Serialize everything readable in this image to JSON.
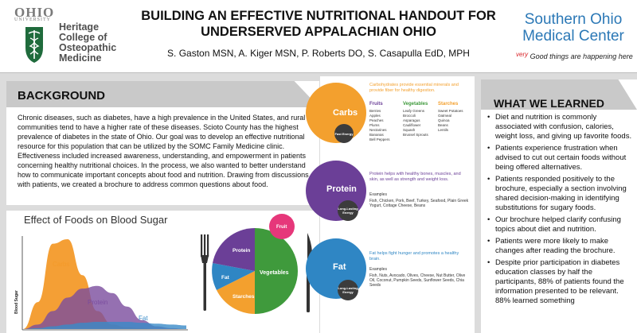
{
  "header": {
    "ohio_wordmark": "OHIO",
    "ohio_subtext": "UNIVERSITY",
    "college_lines": [
      "Heritage",
      "College of",
      "Osteopathic",
      "Medicine"
    ],
    "title_line1": "BUILDING AN EFFECTIVE NUTRITIONAL HANDOUT FOR",
    "title_line2": "UNDERSERVED APPALACHIAN OHIO",
    "authors": "S. Gaston MSN, A. Kiger MSN, P. Roberts DO, S. Casapulla EdD, MPH",
    "somc_line1": "Southern Ohio",
    "somc_line2": "Medical Center",
    "tagline_very": "very",
    "tagline": "Good things are happening here"
  },
  "background": {
    "title": "BACKGROUND",
    "text": "Chronic diseases, such as diabetes, have a high prevalence in the United States, and rural communities tend to have a higher rate of these diseases. Scioto County has the highest prevalence of diabetes in the state of Ohio. Our goal was to develop an effective nutritional resource for this population that can be utilized by the SOMC Family Medicine clinic. Effectiveness included increased awareness, understanding, and empowerment in patients concerning healthy nutritional choices. In the process, we also wanted to better understand how to communicate important concepts about food and nutrition. Drawing from discussions with patients, we created a brochure to address common questions about food."
  },
  "effect": {
    "title": "Effect of Foods on Blood Sugar",
    "y_axis_label": "Blood Sugar",
    "chart_data": {
      "type": "area",
      "title": "Effect of Foods on Blood Sugar",
      "ylabel": "Blood Sugar",
      "xlabel": "",
      "series": [
        {
          "name": "Carbs",
          "values": [
            0,
            30,
            95,
            100,
            60,
            20,
            5,
            2,
            1,
            0,
            0,
            0
          ],
          "color": "#f39a2a"
        },
        {
          "name": "Protein",
          "values": [
            0,
            5,
            20,
            35,
            45,
            48,
            40,
            25,
            10,
            3,
            1,
            0
          ],
          "color": "#7a4c9e"
        },
        {
          "name": "Fat",
          "values": [
            0,
            1,
            3,
            5,
            7,
            8,
            8,
            8,
            7,
            6,
            5,
            4
          ],
          "color": "#3a8bc8"
        }
      ]
    },
    "plate": {
      "protein": "Protein",
      "fat": "Fat",
      "starches": "Starches",
      "vegetables": "Vegetables",
      "fruit": "Fruit",
      "colors": {
        "protein": "#6b3f97",
        "fat": "#2f86c4",
        "starches": "#f3a02e",
        "vegetables": "#3f9a3c",
        "fruit": "#e6377a"
      }
    }
  },
  "brochure": {
    "carbs": {
      "label": "Carbs",
      "energy": "Fast Energy",
      "color": "#f3a02e",
      "desc": "Carbohydrates provide essential minerals and provide fiber for healthy digestion.",
      "columns": [
        {
          "head": "Fruits",
          "color": "#6b3f97",
          "items": [
            "Berries",
            "Apples",
            "Peaches",
            "Plums",
            "Nectarines",
            "Bananas",
            "Bell Peppers"
          ]
        },
        {
          "head": "Vegetables",
          "color": "#3f9a3c",
          "items": [
            "Leafy Greens",
            "Broccoli",
            "Asparagus",
            "Cauliflower",
            "Squash",
            "Brussel Sprouts"
          ]
        },
        {
          "head": "Starches",
          "color": "#f3a02e",
          "items": [
            "Sweet Potatoes",
            "Oatmeal",
            "Quinoa",
            "Beans",
            "Lentils"
          ]
        }
      ]
    },
    "protein": {
      "label": "Protein",
      "energy": "Long-Lasting Energy",
      "color": "#6b3f97",
      "desc": "Protein helps with healthy bones, muscles, and skin, as well as strength and weight loss.",
      "examples_title": "Examples",
      "examples": "Fish, Chicken, Pork, Beef, Turkey, Seafood, Plain Greek Yogurt, Cottage Cheese, Beans"
    },
    "fat": {
      "label": "Fat",
      "energy": "Long-Lasting Energy",
      "color": "#2f86c4",
      "desc": "Fat helps fight hunger and promotes a healthy brain.",
      "examples_title": "Examples",
      "examples": "Fish, Nuts, Avocado, Olives, Cheese, Nut Butter, Olive Oil, Coconut, Pumpkin Seeds, Sunflower Seeds, Chia Seeds"
    }
  },
  "learned": {
    "title": "WHAT WE LEARNED",
    "items": [
      "Diet and nutrition is commonly associated with confusion, calories, weight loss, and giving up favorite foods.",
      "Patients experience frustration when advised to cut out certain foods without being offered alternatives.",
      "Patients responded positively to the brochure, especially a section involving shared decision-making in identifying substitutions for sugary foods.",
      "Our brochure helped clarify confusing topics about diet and nutrition.",
      "Patients were more likely to make changes after reading the brochure.",
      "Despite prior participation in diabetes education classes by half the participants, 88% of patients found the information presented to be relevant. 88% learned something"
    ]
  }
}
